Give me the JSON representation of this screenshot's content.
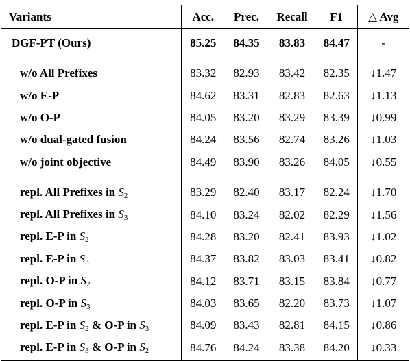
{
  "header": [
    "Variants",
    "Acc.",
    "Prec.",
    "Recall",
    "F1",
    "△ Avg"
  ],
  "ours": {
    "variant": "DGF-PT (Ours)",
    "values": [
      "85.25",
      "84.35",
      "83.83",
      "84.47",
      "-"
    ]
  },
  "section1": [
    {
      "variant": "w/o All Prefixes",
      "values": [
        "83.32",
        "82.93",
        "83.42",
        "82.35",
        "↓1.47"
      ]
    },
    {
      "variant": "w/o E-P",
      "values": [
        "84.62",
        "83.31",
        "82.83",
        "82.63",
        "↓1.13"
      ]
    },
    {
      "variant": "w/o O-P",
      "values": [
        "84.05",
        "83.20",
        "83.29",
        "83.39",
        "↓0.99"
      ]
    },
    {
      "variant": "w/o dual-gated fusion",
      "values": [
        "84.24",
        "83.56",
        "82.74",
        "83.26",
        "↓1.03"
      ]
    },
    {
      "variant": "w/o joint objective",
      "values": [
        "84.49",
        "83.90",
        "83.26",
        "84.05",
        "↓0.55"
      ]
    }
  ],
  "section2": [
    {
      "variant": "repl. All Prefixes in S2",
      "values": [
        "83.29",
        "82.40",
        "83.17",
        "82.24",
        "↓1.70"
      ]
    },
    {
      "variant": "repl. All Prefixes in S3",
      "values": [
        "84.10",
        "83.24",
        "82.02",
        "82.29",
        "↓1.56"
      ]
    },
    {
      "variant": "repl. E-P in S2",
      "values": [
        "84.28",
        "83.20",
        "82.41",
        "83.93",
        "↓1.02"
      ]
    },
    {
      "variant": "repl. E-P in S3",
      "values": [
        "84.37",
        "83.82",
        "83.03",
        "83.41",
        "↓0.82"
      ]
    },
    {
      "variant": "repl. O-P in S2",
      "values": [
        "84.12",
        "83.71",
        "83.15",
        "83.84",
        "↓0.77"
      ]
    },
    {
      "variant": "repl. O-P in S3",
      "values": [
        "84.03",
        "83.65",
        "82.20",
        "83.73",
        "↓1.07"
      ]
    },
    {
      "variant": "repl. E-P in S2 & O-P in S3",
      "values": [
        "84.09",
        "83.43",
        "82.81",
        "84.15",
        "↓0.86"
      ]
    },
    {
      "variant": "repl. E-P in S3 & O-P in S2",
      "values": [
        "84.76",
        "84.24",
        "83.38",
        "84.20",
        "↓0.33"
      ]
    }
  ]
}
